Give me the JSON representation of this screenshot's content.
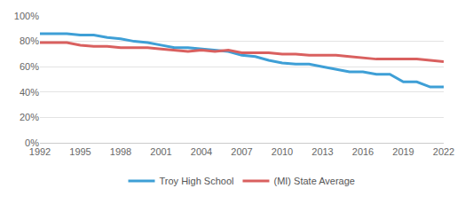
{
  "chart_data": {
    "type": "line",
    "x": [
      1992,
      1993,
      1994,
      1995,
      1996,
      1997,
      1998,
      1999,
      2000,
      2001,
      2002,
      2003,
      2004,
      2005,
      2006,
      2007,
      2008,
      2009,
      2010,
      2011,
      2012,
      2013,
      2014,
      2015,
      2016,
      2017,
      2018,
      2019,
      2020,
      2021,
      2022
    ],
    "series": [
      {
        "name": "Troy High School",
        "color": "#3e9fd6",
        "values": [
          86,
          86,
          86,
          85,
          85,
          83,
          82,
          80,
          79,
          77,
          75,
          75,
          74,
          73,
          72,
          69,
          68,
          65,
          63,
          62,
          62,
          60,
          58,
          56,
          56,
          54,
          54,
          48,
          48,
          44,
          44
        ]
      },
      {
        "name": "(MI) State Average",
        "color": "#d9605f",
        "values": [
          79,
          79,
          79,
          77,
          76,
          76,
          75,
          75,
          75,
          74,
          73,
          72,
          73,
          72,
          73,
          71,
          71,
          71,
          70,
          70,
          69,
          69,
          69,
          68,
          67,
          66,
          66,
          66,
          66,
          65,
          64
        ]
      }
    ],
    "xlim": [
      1992,
      2022
    ],
    "xticks": [
      1992,
      1995,
      1998,
      2001,
      2004,
      2007,
      2010,
      2013,
      2016,
      2019,
      2022
    ],
    "ylim": [
      0,
      100
    ],
    "yticks": [
      {
        "value": 0,
        "label": "0%"
      },
      {
        "value": 20,
        "label": "20%"
      },
      {
        "value": 40,
        "label": "40%"
      },
      {
        "value": 60,
        "label": "60%"
      },
      {
        "value": 80,
        "label": "80%"
      },
      {
        "value": 100,
        "label": "100%"
      }
    ],
    "grid": true,
    "legend": "bottom"
  }
}
